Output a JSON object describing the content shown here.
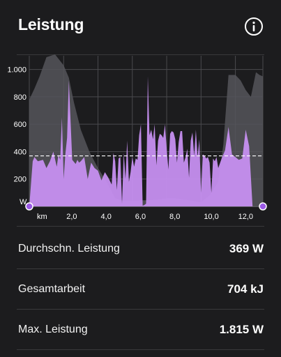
{
  "header": {
    "title": "Leistung",
    "info_icon": "info-circle-icon"
  },
  "colors": {
    "background": "#1c1c1e",
    "power_fill": "#c68ff0",
    "elevation_fill": "#55555a",
    "average_line": "#ffffff",
    "grid": "#4a4a4e",
    "marker": "#9b59e6"
  },
  "chart_data": {
    "type": "area",
    "y_unit_label": "W",
    "x_unit_label": "km",
    "y_ticks": [
      "1.000",
      "800",
      "600",
      "400",
      "200"
    ],
    "x_ticks": [
      "2,0",
      "4,0",
      "6,0",
      "8,0",
      "10,0",
      "12,0"
    ],
    "x_range": [
      0,
      13.6
    ],
    "y_range": [
      0,
      1100
    ],
    "average": 369,
    "series": [
      {
        "x": [
          0,
          0.2,
          0.3,
          0.5,
          0.8,
          1.0,
          1.2,
          1.4,
          1.6,
          1.7,
          1.8,
          1.9,
          2.0,
          2.1,
          2.2,
          2.3,
          2.5,
          2.7,
          2.8,
          2.9,
          3.0,
          3.2,
          3.4,
          3.6,
          3.8,
          4.0,
          4.2,
          4.4,
          4.6,
          4.8,
          4.9,
          5.0,
          5.1,
          5.2,
          5.3,
          5.4,
          5.5,
          5.6,
          5.7,
          5.8,
          5.9,
          6.0,
          6.1,
          6.2,
          6.3,
          6.4,
          6.5,
          6.6,
          6.7,
          6.8,
          6.9,
          7.0,
          7.1,
          7.2,
          7.3,
          7.4,
          7.5,
          7.6,
          7.7,
          7.8,
          7.9,
          8.0,
          8.1,
          8.2,
          8.3,
          8.4,
          8.5,
          8.6,
          8.7,
          8.8,
          8.9,
          9.0,
          9.1,
          9.2,
          9.3,
          9.4,
          9.5,
          9.6,
          9.7,
          9.8,
          9.9,
          10.0,
          10.1,
          10.2,
          10.3,
          10.4,
          10.5,
          10.6,
          10.7,
          10.8,
          10.9,
          11.0,
          11.2,
          11.4,
          11.6,
          11.8,
          12.0,
          12.2,
          12.4,
          12.6,
          12.8,
          13.0,
          13.2,
          13.4,
          13.6
        ],
        "y": [
          0,
          330,
          360,
          330,
          340,
          280,
          330,
          400,
          290,
          380,
          340,
          650,
          200,
          380,
          500,
          920,
          340,
          310,
          340,
          320,
          330,
          360,
          200,
          320,
          280,
          260,
          190,
          250,
          210,
          160,
          390,
          330,
          120,
          350,
          360,
          20,
          390,
          200,
          480,
          180,
          250,
          360,
          290,
          350,
          340,
          520,
          600,
          5,
          10,
          20,
          950,
          520,
          560,
          490,
          600,
          300,
          480,
          530,
          520,
          500,
          600,
          420,
          270,
          530,
          550,
          540,
          490,
          320,
          470,
          550,
          550,
          320,
          360,
          420,
          210,
          480,
          540,
          370,
          560,
          360,
          490,
          100,
          380,
          370,
          350,
          360,
          320,
          100,
          350,
          330,
          360,
          280,
          350,
          410,
          580,
          380,
          360,
          340,
          350,
          560,
          440,
          0,
          0,
          0,
          0
        ]
      },
      {
        "x": [
          0,
          0.3,
          0.6,
          1.0,
          1.5,
          2.0,
          2.3,
          2.6,
          3.0,
          3.5,
          4.0,
          4.5,
          5.0,
          5.5,
          6.0,
          6.5,
          7.0,
          7.5,
          8.0,
          8.5,
          9.0,
          9.5,
          10.0,
          10.5,
          11.0,
          11.3,
          11.6,
          12.0,
          12.3,
          12.6,
          12.9,
          13.2,
          13.4,
          13.6
        ],
        "y": [
          780,
          860,
          950,
          1090,
          1110,
          1030,
          940,
          760,
          560,
          400,
          280,
          180,
          60,
          40,
          40,
          45,
          45,
          50,
          60,
          60,
          50,
          40,
          30,
          80,
          180,
          450,
          960,
          960,
          920,
          850,
          800,
          980,
          960,
          950
        ]
      }
    ]
  },
  "stats": [
    {
      "label": "Durchschn. Leistung",
      "value": "369 W"
    },
    {
      "label": "Gesamtarbeit",
      "value": "704 kJ"
    },
    {
      "label": "Max. Leistung",
      "value": "1.815 W"
    }
  ]
}
